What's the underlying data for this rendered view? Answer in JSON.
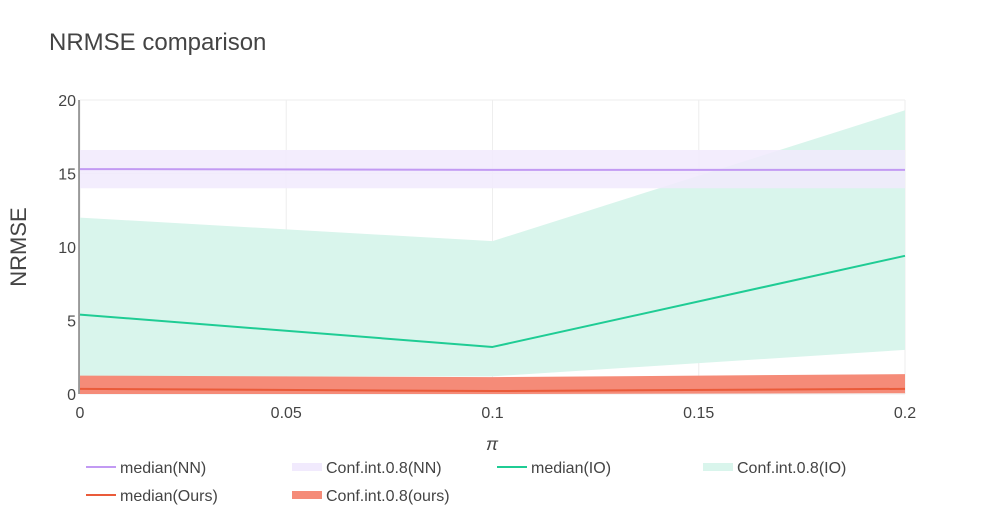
{
  "chart_data": {
    "type": "line",
    "title": "NRMSE comparison",
    "xlabel": "π",
    "ylabel": "NRMSE",
    "x": [
      0,
      0.1,
      0.2
    ],
    "xlim": [
      0,
      0.2
    ],
    "ylim": [
      0,
      20
    ],
    "xticks": [
      0,
      0.05,
      0.1,
      0.15,
      0.2
    ],
    "xtick_labels": [
      "0",
      "0.05",
      "0.1",
      "0.15",
      "0.2"
    ],
    "yticks": [
      0,
      5,
      10,
      15,
      20
    ],
    "ytick_labels": [
      "0",
      "5",
      "10",
      "15",
      "20"
    ],
    "grid": true,
    "legend_position": "bottom",
    "bands": [
      {
        "name": "Conf.int.0.8(IO)",
        "color": "#d9f5ec",
        "lower": [
          1.2,
          1.2,
          3.0
        ],
        "upper": [
          12.0,
          10.4,
          19.3
        ]
      },
      {
        "name": "Conf.int.0.8(NN)",
        "color": "#f1eafd",
        "opacity": 0.85,
        "lower": [
          14.0,
          14.0,
          14.0
        ],
        "upper": [
          16.6,
          16.6,
          16.6
        ]
      },
      {
        "name": "Conf.int.0.8(ours)",
        "color": "#f58b78",
        "lower": [
          0.0,
          0.0,
          0.05
        ],
        "upper": [
          1.25,
          1.15,
          1.35
        ]
      }
    ],
    "series": [
      {
        "name": "median(NN)",
        "color": "#c29af3",
        "values": [
          15.3,
          15.25,
          15.25
        ]
      },
      {
        "name": "median(IO)",
        "color": "#1fcc94",
        "values": [
          5.4,
          3.2,
          9.4
        ]
      },
      {
        "name": "median(Ours)",
        "color": "#ea5b3a",
        "values": [
          0.35,
          0.2,
          0.35
        ]
      }
    ],
    "legend": [
      {
        "label": "median(NN)",
        "kind": "line",
        "color": "#c29af3"
      },
      {
        "label": "Conf.int.0.8(NN)",
        "kind": "band",
        "color": "#f1eafd"
      },
      {
        "label": "median(IO)",
        "kind": "line",
        "color": "#1fcc94"
      },
      {
        "label": "Conf.int.0.8(IO)",
        "kind": "band",
        "color": "#d9f5ec"
      },
      {
        "label": "median(Ours)",
        "kind": "line",
        "color": "#ea5b3a"
      },
      {
        "label": "Conf.int.0.8(ours)",
        "kind": "band",
        "color": "#f58b78"
      }
    ]
  }
}
